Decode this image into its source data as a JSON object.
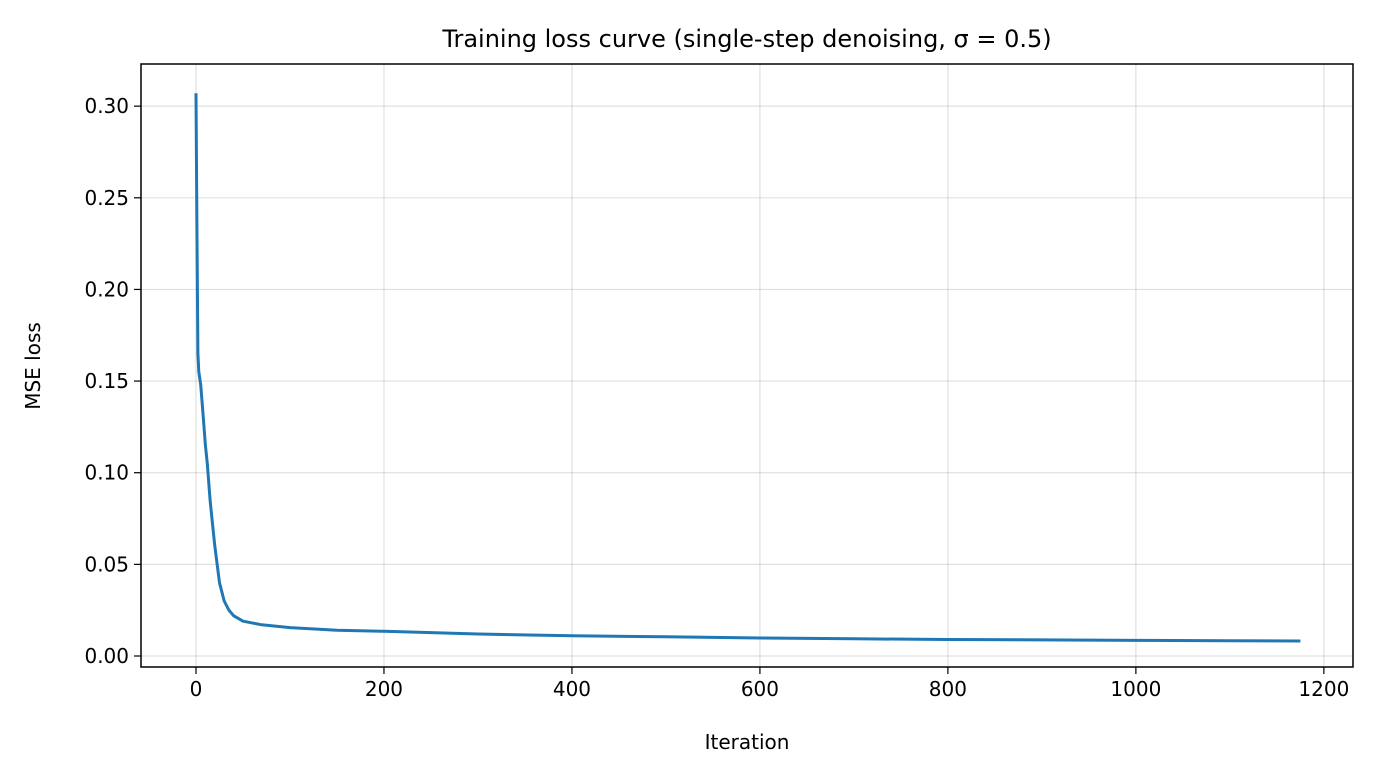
{
  "chart_data": {
    "type": "line",
    "title": "Training loss curve (single-step denoising, σ = 0.5)",
    "xlabel": "Iteration",
    "ylabel": "MSE loss",
    "xlim": [
      -58.5,
      1231
    ],
    "ylim": [
      -0.006,
      0.323
    ],
    "xticks": [
      "0",
      "200",
      "400",
      "600",
      "800",
      "1000",
      "1200"
    ],
    "yticks": [
      "0.00",
      "0.05",
      "0.10",
      "0.15",
      "0.20",
      "0.25",
      "0.30"
    ],
    "grid": true,
    "color": "#1f77b4",
    "series": [
      {
        "x": [
          0,
          1,
          2,
          3,
          5,
          7,
          10,
          12,
          15,
          18,
          20,
          25,
          30,
          35,
          40,
          50,
          70,
          100,
          150,
          200,
          300,
          400,
          500,
          600,
          700,
          800,
          900,
          1000,
          1100,
          1175
        ],
        "y": [
          0.307,
          0.235,
          0.165,
          0.155,
          0.148,
          0.135,
          0.115,
          0.105,
          0.085,
          0.07,
          0.06,
          0.04,
          0.03,
          0.025,
          0.022,
          0.019,
          0.017,
          0.0155,
          0.014,
          0.0135,
          0.012,
          0.011,
          0.0105,
          0.0098,
          0.0094,
          0.009,
          0.0088,
          0.0085,
          0.0083,
          0.0082
        ]
      }
    ]
  }
}
